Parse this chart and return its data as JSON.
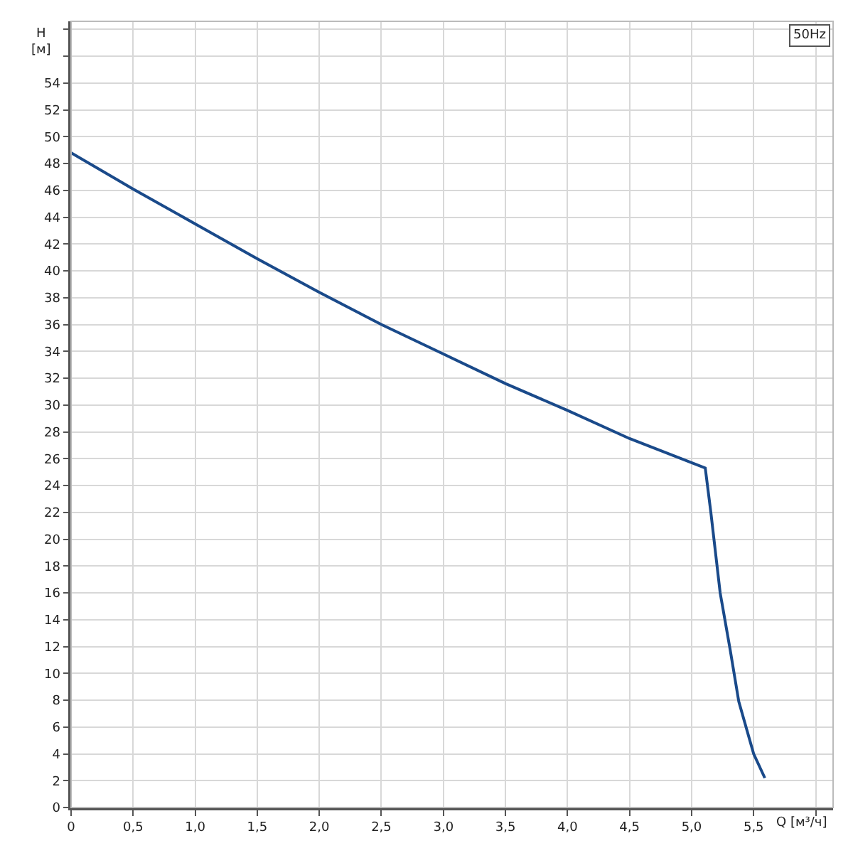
{
  "chart_data": {
    "type": "line",
    "xlabel": "Q [м³/ч]",
    "ylabel": "H\n[м]",
    "annotations": [
      "50Hz"
    ],
    "x": [
      0,
      0.5,
      1.0,
      1.5,
      2.0,
      2.5,
      3.0,
      3.5,
      4.0,
      4.5,
      5.11,
      5.155,
      5.23,
      5.31,
      5.38,
      5.5,
      5.59
    ],
    "series": [
      {
        "color": "#1a4a8a",
        "values": [
          48.8,
          46.1,
          43.5,
          40.9,
          38.4,
          36.0,
          33.8,
          31.6,
          29.6,
          27.5,
          25.3,
          22.0,
          16.0,
          11.8,
          7.9,
          4.0,
          2.2
        ]
      }
    ],
    "xlim": [
      0,
      6.14
    ],
    "ylim": [
      0,
      58.6
    ],
    "xticks": [
      0,
      {
        "value": 0.5,
        "label": "0,5"
      },
      {
        "value": 1.0,
        "label": "1,0"
      },
      {
        "value": 1.5,
        "label": "1,5"
      },
      {
        "value": 2.0,
        "label": "2,0"
      },
      {
        "value": 2.5,
        "label": "2,5"
      },
      {
        "value": 3.0,
        "label": "3,0"
      },
      {
        "value": 3.5,
        "label": "3,5"
      },
      {
        "value": 4.0,
        "label": "4,0"
      },
      {
        "value": 4.5,
        "label": "4,5"
      },
      {
        "value": 5.0,
        "label": "5,0"
      },
      {
        "value": 5.5,
        "label": "5,5"
      },
      {
        "value": 6.0,
        "label": null
      }
    ],
    "yticks": [
      0,
      2,
      4,
      6,
      8,
      10,
      12,
      14,
      16,
      18,
      20,
      22,
      24,
      26,
      28,
      30,
      32,
      34,
      36,
      38,
      40,
      42,
      44,
      46,
      48,
      50,
      52,
      54,
      {
        "value": 56,
        "label": null
      },
      {
        "value": 58,
        "label": null
      }
    ],
    "grid": true,
    "marker": "none",
    "line_style": "solid"
  }
}
